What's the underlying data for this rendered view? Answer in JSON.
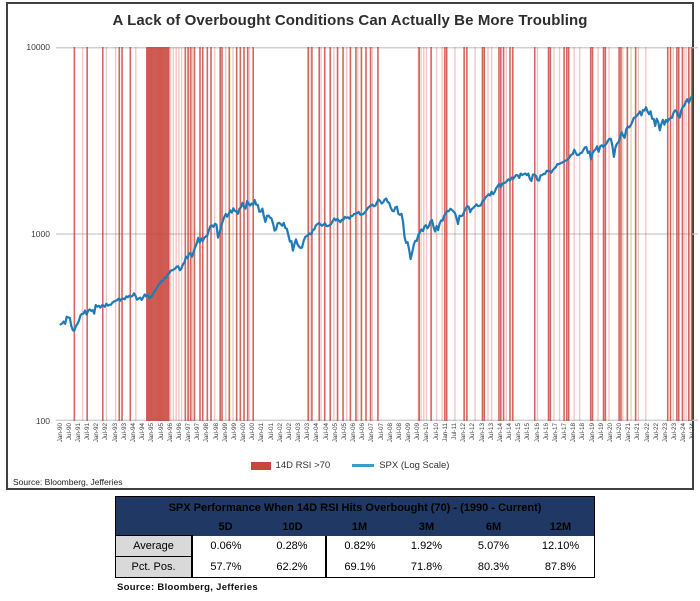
{
  "chart": {
    "title": "A Lack of Overbought Conditions Can Actually Be More Troubling",
    "source": "Source: Bloomberg, Jefferies",
    "legend": {
      "rsi_label": "14D RSI >70",
      "spx_label": "SPX (Log Scale)"
    }
  },
  "colors": {
    "red": "#C9463C",
    "blue": "#1F7BB5",
    "legend_blue": "#3C9BC9",
    "navy": "#1F3864",
    "grid": "#C9C9C9",
    "label_cell": "#D9D9D9"
  },
  "chart_data": {
    "type": "line",
    "title": "A Lack of Overbought Conditions Can Actually Be More Troubling",
    "yscale": "log",
    "ylim": [
      100,
      10000
    ],
    "y_ticks": [
      "10000",
      "1000",
      "100"
    ],
    "grid": "horizontal-only",
    "legend_position": "bottom",
    "x_labels": [
      "Jan-90",
      "Jul-90",
      "Jan-91",
      "Jul-91",
      "Jan-92",
      "Jul-92",
      "Jan-93",
      "Jul-93",
      "Jan-94",
      "Jul-94",
      "Jan-95",
      "Jul-95",
      "Jan-96",
      "Jul-96",
      "Jan-97",
      "Jul-97",
      "Jan-98",
      "Jul-98",
      "Jan-99",
      "Jul-99",
      "Jan-00",
      "Jul-00",
      "Jan-01",
      "Jul-01",
      "Jan-02",
      "Jul-02",
      "Jan-03",
      "Jul-03",
      "Jan-04",
      "Jul-04",
      "Jan-05",
      "Jul-05",
      "Jan-06",
      "Jul-06",
      "Jan-07",
      "Jul-07",
      "Jan-08",
      "Jul-08",
      "Jan-09",
      "Jul-09",
      "Jan-10",
      "Jul-10",
      "Jan-11",
      "Jul-11",
      "Jan-12",
      "Jul-12",
      "Jan-13",
      "Jul-13",
      "Jan-14",
      "Jul-14",
      "Jan-15",
      "Jul-15",
      "Jan-16",
      "Jul-16",
      "Jan-17",
      "Jul-17",
      "Jan-18",
      "Jul-18",
      "Jan-19",
      "Jul-19",
      "Jan-20",
      "Jul-20",
      "Jan-21",
      "Jul-21",
      "Jan-22",
      "Jul-22",
      "Jan-23",
      "Jul-23",
      "Jan-24",
      "Jul-24"
    ],
    "series": [
      {
        "name": "SPX (Log Scale)",
        "freq": "monthly",
        "start_year": 1990,
        "values": [
          329,
          332,
          340,
          331,
          361,
          358,
          356,
          323,
          306,
          304,
          322,
          330,
          344,
          367,
          375,
          375,
          390,
          371,
          388,
          395,
          388,
          392,
          375,
          417,
          409,
          413,
          404,
          415,
          415,
          408,
          424,
          414,
          418,
          419,
          431,
          436,
          439,
          443,
          452,
          440,
          450,
          451,
          448,
          464,
          459,
          468,
          462,
          466,
          482,
          467,
          446,
          451,
          457,
          444,
          458,
          475,
          463,
          472,
          454,
          459,
          470,
          487,
          501,
          515,
          533,
          545,
          562,
          562,
          584,
          582,
          605,
          616,
          636,
          640,
          646,
          654,
          669,
          671,
          640,
          652,
          687,
          705,
          757,
          741,
          786,
          791,
          757,
          801,
          848,
          885,
          954,
          899,
          947,
          915,
          955,
          970,
          980,
          1049,
          1102,
          1112,
          1091,
          1134,
          1121,
          957,
          1017,
          1099,
          1164,
          1229,
          1280,
          1238,
          1286,
          1335,
          1302,
          1373,
          1329,
          1320,
          1283,
          1363,
          1389,
          1469,
          1394,
          1366,
          1499,
          1452,
          1421,
          1455,
          1431,
          1518,
          1437,
          1429,
          1315,
          1320,
          1366,
          1240,
          1160,
          1249,
          1256,
          1224,
          1211,
          1134,
          1041,
          1060,
          1139,
          1148,
          1130,
          1107,
          1147,
          1077,
          1067,
          990,
          911,
          916,
          815,
          886,
          936,
          880,
          856,
          841,
          848,
          917,
          964,
          975,
          990,
          1008,
          996,
          1051,
          1058,
          1112,
          1131,
          1145,
          1126,
          1107,
          1121,
          1141,
          1102,
          1104,
          1115,
          1130,
          1174,
          1212,
          1181,
          1204,
          1181,
          1157,
          1192,
          1191,
          1234,
          1220,
          1229,
          1207,
          1249,
          1248,
          1280,
          1281,
          1295,
          1311,
          1270,
          1270,
          1277,
          1304,
          1336,
          1378,
          1401,
          1418,
          1438,
          1407,
          1421,
          1482,
          1531,
          1503,
          1455,
          1474,
          1527,
          1549,
          1481,
          1468,
          1379,
          1331,
          1323,
          1386,
          1400,
          1280,
          1267,
          1283,
          1166,
          969,
          896,
          903,
          826,
          735,
          798,
          873,
          919,
          919,
          987,
          1021,
          1057,
          1036,
          1096,
          1115,
          1074,
          1104,
          1169,
          1187,
          1089,
          1031,
          1102,
          1049,
          1141,
          1183,
          1181,
          1258,
          1286,
          1327,
          1326,
          1364,
          1345,
          1321,
          1292,
          1219,
          1131,
          1253,
          1247,
          1258,
          1312,
          1366,
          1408,
          1398,
          1310,
          1362,
          1379,
          1407,
          1441,
          1412,
          1416,
          1426,
          1498,
          1515,
          1569,
          1598,
          1631,
          1606,
          1686,
          1633,
          1682,
          1757,
          1806,
          1848,
          1783,
          1859,
          1872,
          1884,
          1924,
          1960,
          1931,
          2003,
          1972,
          2018,
          2068,
          2059,
          1995,
          2105,
          2068,
          2086,
          2107,
          2063,
          2104,
          1972,
          1920,
          2079,
          2080,
          2044,
          1940,
          1932,
          2060,
          2065,
          2097,
          2099,
          2174,
          2171,
          2168,
          2126,
          2199,
          2239,
          2279,
          2364,
          2363,
          2384,
          2412,
          2423,
          2470,
          2472,
          2519,
          2575,
          2648,
          2674,
          2824,
          2714,
          2641,
          2648,
          2705,
          2718,
          2816,
          2902,
          2914,
          2712,
          2760,
          2507,
          2704,
          2784,
          2834,
          2946,
          2752,
          2942,
          2980,
          2926,
          2977,
          3038,
          3141,
          3231,
          3226,
          2954,
          2585,
          2912,
          3044,
          3100,
          3271,
          3500,
          3363,
          3270,
          3622,
          3756,
          3714,
          3811,
          3973,
          4181,
          4204,
          4298,
          4395,
          4523,
          4308,
          4605,
          4567,
          4766,
          4516,
          4374,
          4530,
          4132,
          4132,
          3785,
          4130,
          3955,
          3586,
          3872,
          4080,
          3840,
          4077,
          3970,
          4109,
          4169,
          4180,
          4450,
          4589,
          4508,
          4288,
          4194,
          4568,
          4770,
          4846,
          5096,
          5254,
          5036,
          5278,
          5460
        ]
      },
      {
        "name": "14D RSI >70",
        "style": "vertical-event-lines",
        "strong_years": [
          1990.75,
          1991.45,
          1992.3,
          1993.2,
          1993.35,
          1993.8,
          1994.7,
          1994.76,
          1994.82,
          1994.88,
          1994.94,
          1995.0,
          1995.06,
          1995.12,
          1995.18,
          1995.24,
          1995.3,
          1995.36,
          1995.42,
          1995.48,
          1995.54,
          1995.6,
          1995.66,
          1995.72,
          1995.78,
          1995.84,
          1995.9,
          1996.8,
          1996.95,
          1997.1,
          1997.3,
          1997.6,
          1997.75,
          1998.0,
          1998.2,
          1998.7,
          1998.8,
          1999.2,
          1999.6,
          1999.8,
          2000.0,
          2000.2,
          2000.5,
          2003.5,
          2003.7,
          2004.1,
          2004.4,
          2004.7,
          2005.1,
          2005.4,
          2005.8,
          2006.1,
          2006.4,
          2006.65,
          2006.9,
          2007.3,
          2009.55,
          2010.2,
          2010.95,
          2011.05,
          2012.0,
          2012.15,
          2013.0,
          2013.1,
          2013.9,
          2014.0,
          2014.15,
          2014.5,
          2014.65,
          2015.85,
          2016.6,
          2016.7,
          2017.45,
          2017.6,
          2017.7,
          2018.9,
          2019.0,
          2019.6,
          2019.7,
          2020.45,
          2020.55,
          2020.9,
          2021.35,
          2023.1,
          2023.25,
          2023.6,
          2023.7,
          2023.9,
          2024.25,
          2024.4
        ],
        "light_years": [
          1991.2,
          1992.5,
          1993.0,
          1994.1,
          1996.0,
          1996.15,
          1996.3,
          1996.45,
          1996.6,
          1997.0,
          1997.2,
          1998.4,
          1999.0,
          1999.4,
          2000.3,
          2003.6,
          2004.2,
          2004.9,
          2005.6,
          2006.2,
          2007.0,
          2009.5,
          2009.65,
          2009.8,
          2009.95,
          2010.5,
          2010.8,
          2011.5,
          2012.6,
          2013.3,
          2013.5,
          2014.3,
          2016.0,
          2016.9,
          2017.2,
          2018.0,
          2018.3,
          2019.3,
          2019.9,
          2020.65,
          2021.1,
          2021.5,
          2021.9,
          2023.4,
          2024.0,
          2024.1
        ]
      }
    ]
  },
  "table": {
    "title": "SPX Performance When 14D RSI Hits Overbought (70) - (1990 - Current)",
    "columns": [
      "5D",
      "10D",
      "1M",
      "3M",
      "6M",
      "12M"
    ],
    "rows": [
      {
        "label": "Average",
        "values": [
          "0.06%",
          "0.28%",
          "0.82%",
          "1.92%",
          "5.07%",
          "12.10%"
        ]
      },
      {
        "label": "Pct. Pos.",
        "values": [
          "57.7%",
          "62.2%",
          "69.1%",
          "71.8%",
          "80.3%",
          "87.8%"
        ]
      }
    ],
    "source": "Source: Bloomberg, Jefferies"
  }
}
